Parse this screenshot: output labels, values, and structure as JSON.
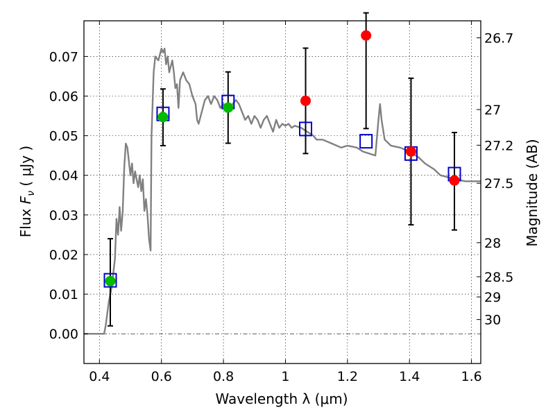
{
  "chart_data": {
    "type": "scatter",
    "xlabel": "Wavelength  λ (μm)",
    "ylabel_parts": [
      "Flux  ",
      "F",
      "ν",
      "  (  μJy )"
    ],
    "ylabel_right": "Magnitude (AB)",
    "xlim": [
      0.35,
      1.63
    ],
    "ylim": [
      -0.0075,
      0.079
    ],
    "grid": true,
    "x_ticks": [
      {
        "v": 0.4,
        "label": "0.4"
      },
      {
        "v": 0.6,
        "label": "0.6"
      },
      {
        "v": 0.8,
        "label": "0.8"
      },
      {
        "v": 1.0,
        "label": "1"
      },
      {
        "v": 1.2,
        "label": "1.2"
      },
      {
        "v": 1.4,
        "label": "1.4"
      },
      {
        "v": 1.6,
        "label": "1.6"
      }
    ],
    "y_ticks": [
      {
        "v": 0.0,
        "label": "0.00"
      },
      {
        "v": 0.01,
        "label": "0.01"
      },
      {
        "v": 0.02,
        "label": "0.02"
      },
      {
        "v": 0.03,
        "label": "0.03"
      },
      {
        "v": 0.04,
        "label": "0.04"
      },
      {
        "v": 0.05,
        "label": "0.05"
      },
      {
        "v": 0.06,
        "label": "0.06"
      },
      {
        "v": 0.07,
        "label": "0.07"
      }
    ],
    "mag_ticks": [
      {
        "v": 0.0747,
        "label": "26.7"
      },
      {
        "v": 0.0566,
        "label": "27"
      },
      {
        "v": 0.0476,
        "label": "27.2"
      },
      {
        "v": 0.038,
        "label": "27.5"
      },
      {
        "v": 0.023,
        "label": "28"
      },
      {
        "v": 0.0144,
        "label": "28.5"
      },
      {
        "v": 0.0093,
        "label": "29"
      },
      {
        "v": 0.0036,
        "label": "30"
      }
    ],
    "colors": {
      "model": "#808080",
      "green": "#00bb00",
      "red": "#ff0000",
      "box": "#0000cc",
      "errbar": "#000000"
    },
    "model_sed": [
      [
        0.35,
        0.0
      ],
      [
        0.4,
        0.0
      ],
      [
        0.415,
        0.0
      ],
      [
        0.42,
        0.002
      ],
      [
        0.43,
        0.008
      ],
      [
        0.44,
        0.012
      ],
      [
        0.45,
        0.019
      ],
      [
        0.455,
        0.029
      ],
      [
        0.46,
        0.025
      ],
      [
        0.465,
        0.032
      ],
      [
        0.47,
        0.026
      ],
      [
        0.475,
        0.031
      ],
      [
        0.48,
        0.042
      ],
      [
        0.485,
        0.048
      ],
      [
        0.49,
        0.047
      ],
      [
        0.5,
        0.04
      ],
      [
        0.505,
        0.043
      ],
      [
        0.51,
        0.038
      ],
      [
        0.515,
        0.041
      ],
      [
        0.525,
        0.037
      ],
      [
        0.53,
        0.04
      ],
      [
        0.535,
        0.036
      ],
      [
        0.54,
        0.039
      ],
      [
        0.545,
        0.031
      ],
      [
        0.55,
        0.034
      ],
      [
        0.555,
        0.03
      ],
      [
        0.56,
        0.024
      ],
      [
        0.565,
        0.021
      ],
      [
        0.568,
        0.05
      ],
      [
        0.575,
        0.066
      ],
      [
        0.58,
        0.07
      ],
      [
        0.59,
        0.069
      ],
      [
        0.6,
        0.072
      ],
      [
        0.605,
        0.071
      ],
      [
        0.61,
        0.072
      ],
      [
        0.615,
        0.068
      ],
      [
        0.62,
        0.07
      ],
      [
        0.625,
        0.066
      ],
      [
        0.635,
        0.069
      ],
      [
        0.64,
        0.066
      ],
      [
        0.645,
        0.062
      ],
      [
        0.65,
        0.063
      ],
      [
        0.655,
        0.057
      ],
      [
        0.66,
        0.064
      ],
      [
        0.67,
        0.066
      ],
      [
        0.68,
        0.064
      ],
      [
        0.69,
        0.063
      ],
      [
        0.7,
        0.06
      ],
      [
        0.71,
        0.058
      ],
      [
        0.715,
        0.054
      ],
      [
        0.72,
        0.053
      ],
      [
        0.73,
        0.056
      ],
      [
        0.74,
        0.059
      ],
      [
        0.75,
        0.06
      ],
      [
        0.76,
        0.058
      ],
      [
        0.77,
        0.06
      ],
      [
        0.78,
        0.059
      ],
      [
        0.79,
        0.057
      ],
      [
        0.8,
        0.058
      ],
      [
        0.81,
        0.056
      ],
      [
        0.82,
        0.057
      ],
      [
        0.83,
        0.058
      ],
      [
        0.84,
        0.059
      ],
      [
        0.85,
        0.058
      ],
      [
        0.86,
        0.056
      ],
      [
        0.87,
        0.054
      ],
      [
        0.88,
        0.055
      ],
      [
        0.89,
        0.053
      ],
      [
        0.9,
        0.055
      ],
      [
        0.91,
        0.054
      ],
      [
        0.92,
        0.052
      ],
      [
        0.93,
        0.054
      ],
      [
        0.94,
        0.055
      ],
      [
        0.95,
        0.053
      ],
      [
        0.96,
        0.051
      ],
      [
        0.97,
        0.054
      ],
      [
        0.98,
        0.052
      ],
      [
        0.99,
        0.053
      ],
      [
        1.0,
        0.0525
      ],
      [
        1.01,
        0.053
      ],
      [
        1.02,
        0.052
      ],
      [
        1.03,
        0.0525
      ],
      [
        1.05,
        0.052
      ],
      [
        1.07,
        0.051
      ],
      [
        1.09,
        0.05
      ],
      [
        1.1,
        0.049
      ],
      [
        1.12,
        0.049
      ],
      [
        1.15,
        0.048
      ],
      [
        1.18,
        0.047
      ],
      [
        1.2,
        0.0475
      ],
      [
        1.23,
        0.047
      ],
      [
        1.25,
        0.046
      ],
      [
        1.27,
        0.0455
      ],
      [
        1.29,
        0.045
      ],
      [
        1.3,
        0.054
      ],
      [
        1.305,
        0.058
      ],
      [
        1.31,
        0.054
      ],
      [
        1.32,
        0.049
      ],
      [
        1.34,
        0.0475
      ],
      [
        1.37,
        0.047
      ],
      [
        1.4,
        0.046
      ],
      [
        1.43,
        0.0445
      ],
      [
        1.45,
        0.043
      ],
      [
        1.48,
        0.0415
      ],
      [
        1.5,
        0.04
      ],
      [
        1.55,
        0.039
      ],
      [
        1.58,
        0.0385
      ],
      [
        1.6,
        0.0385
      ],
      [
        1.63,
        0.0385
      ]
    ],
    "green_points": [
      {
        "x": 0.435,
        "y": 0.0133
      },
      {
        "x": 0.605,
        "y": 0.0547
      },
      {
        "x": 0.815,
        "y": 0.0571
      }
    ],
    "red_points": [
      {
        "x": 1.065,
        "y": 0.0588
      },
      {
        "x": 1.26,
        "y": 0.0753
      },
      {
        "x": 1.405,
        "y": 0.046
      },
      {
        "x": 1.545,
        "y": 0.0387
      }
    ],
    "model_boxes": [
      {
        "x": 0.435,
        "y": 0.0135
      },
      {
        "x": 0.605,
        "y": 0.0555
      },
      {
        "x": 0.815,
        "y": 0.0585
      },
      {
        "x": 1.065,
        "y": 0.0517
      },
      {
        "x": 1.26,
        "y": 0.0486
      },
      {
        "x": 1.405,
        "y": 0.0455
      },
      {
        "x": 1.545,
        "y": 0.0403
      }
    ],
    "error_bars": [
      {
        "x": 0.435,
        "lo": 0.002,
        "hi": 0.024
      },
      {
        "x": 0.605,
        "lo": 0.0475,
        "hi": 0.0618
      },
      {
        "x": 0.815,
        "lo": 0.0481,
        "hi": 0.0661
      },
      {
        "x": 1.065,
        "lo": 0.0455,
        "hi": 0.0721
      },
      {
        "x": 1.26,
        "lo": 0.0518,
        "hi": 0.081
      },
      {
        "x": 1.405,
        "lo": 0.0275,
        "hi": 0.0645
      },
      {
        "x": 1.545,
        "lo": 0.0262,
        "hi": 0.0508
      }
    ]
  }
}
